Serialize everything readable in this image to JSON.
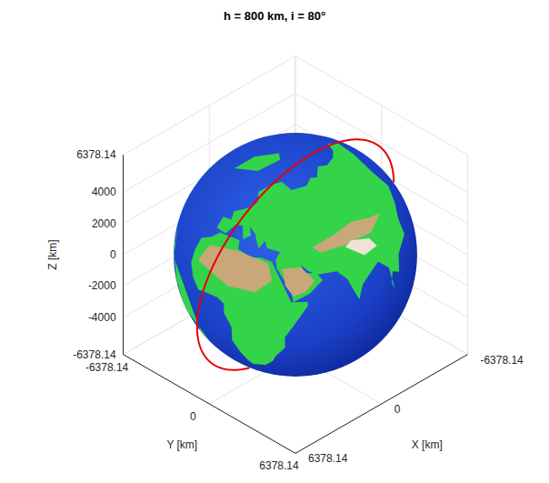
{
  "chart_data": {
    "type": "orbit3d",
    "title": "h = 800 km, i = 80°",
    "xlabel": "X [km]",
    "ylabel": "Y [km]",
    "zlabel": "Z [km]",
    "xlim": [
      -6378.14,
      6378.14
    ],
    "ylim": [
      -6378.14,
      6378.14
    ],
    "zlim": [
      -6378.14,
      6378.14
    ],
    "xticks": [
      -6378.14,
      0,
      6378.14
    ],
    "yticks": [
      -6378.14,
      0,
      6378.14
    ],
    "zticks": [
      -6378.14,
      -4000,
      -2000,
      0,
      2000,
      4000,
      6378.14
    ],
    "grid": true,
    "earth_radius": 6378.14,
    "orbit": {
      "altitude": 800,
      "inclination": 80,
      "raan": 0,
      "color": "#e60000"
    }
  }
}
